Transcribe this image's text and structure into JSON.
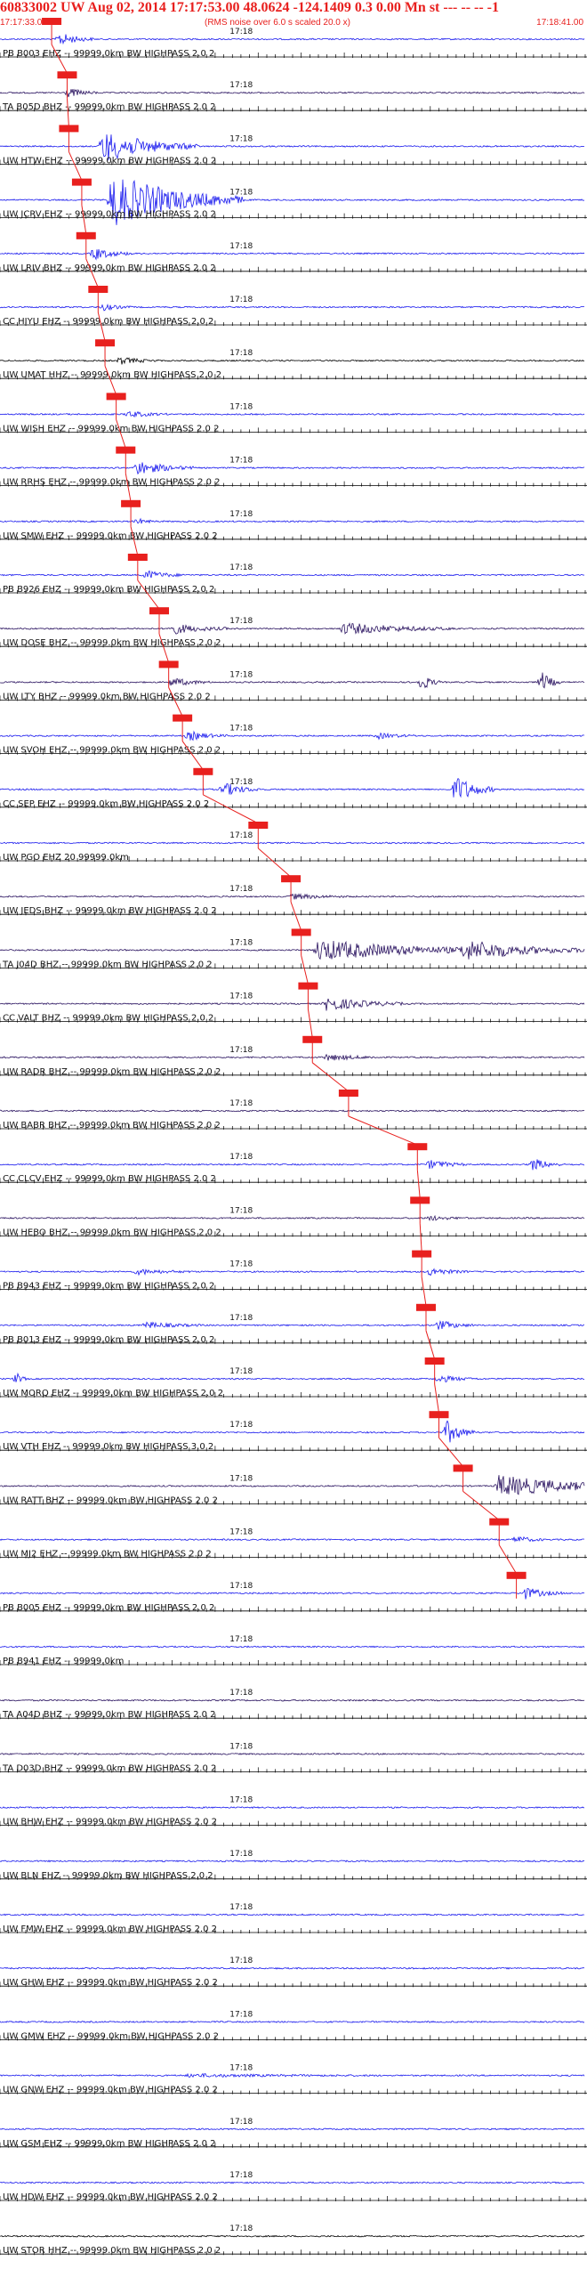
{
  "header": {
    "title": "60833002 UW Aug 02, 2014 17:17:53.00   48.0624 -124.1409  0.3 0.00 Mn st --- -- --  -1",
    "start_time": "17:17:33.00",
    "note": "(RMS noise over 6.0 s scaled 20.0 x)",
    "end_time": "17:18:41.00"
  },
  "colors": {
    "header_text": "#e8201e",
    "pick_line": "#e8201e",
    "trace_blue": "#1a1aee",
    "trace_dark": "#2a1360",
    "trace_black": "#000000"
  },
  "chart_data": {
    "type": "seismogram",
    "x_range_seconds": [
      0,
      68
    ],
    "time_tick_label": "17:18",
    "traces": [
      {
        "label": "PB B003 EHZ -- 99999.0km BW  HIGHPASS  2.0  2",
        "color": "blue",
        "pick_s": 6.0,
        "bursts": [
          [
            7,
            1.8,
            1.4
          ]
        ]
      },
      {
        "label": "TA B05D BHZ -- 99999.0km BW  HIGHPASS  2.0  2",
        "color": "dark",
        "pick_s": 7.8,
        "bursts": [
          [
            8,
            1.5,
            1.0
          ]
        ]
      },
      {
        "label": "UW HTW EHZ -- 99999.0km BW  HIGHPASS  2.0  2",
        "color": "blue",
        "pick_s": 8.0,
        "bursts": [
          [
            12,
            5.0,
            3.5
          ]
        ]
      },
      {
        "label": "UW JCRV EHZ -- 99999.0km BW  HIGHPASS  2.0  2",
        "color": "blue",
        "pick_s": 9.5,
        "bursts": [
          [
            13,
            7.0,
            6.0
          ]
        ]
      },
      {
        "label": "UW LRIV BHZ -- 99999.0km BW  HIGHPASS  2.0  2",
        "color": "blue",
        "pick_s": 10.0,
        "bursts": [
          [
            11,
            2.0,
            1.3
          ]
        ]
      },
      {
        "label": "CC HIYU EHZ -- 99999.0km BW  HIGHPASS  2.0  2",
        "color": "blue",
        "pick_s": 11.4,
        "bursts": [
          [
            12,
            1.5,
            0.7
          ]
        ]
      },
      {
        "label": "UW UMAT HHZ -- 99999.0km BW  HIGHPASS  2.0  2",
        "color": "black",
        "pick_s": 12.2,
        "bursts": [
          [
            14,
            2.0,
            0.8
          ]
        ]
      },
      {
        "label": "UW WISH EHZ -- 99999.0km BW  HIGHPASS  2.0  2",
        "color": "blue",
        "pick_s": 13.5,
        "bursts": [
          [
            15,
            2.0,
            0.7
          ]
        ]
      },
      {
        "label": "UW RRHS EHZ -- 99999.0km BW  HIGHPASS  2.0  2",
        "color": "blue",
        "pick_s": 14.6,
        "bursts": [
          [
            16,
            3.0,
            1.5
          ]
        ]
      },
      {
        "label": "UW SMW EHZ -- 99999.0km BW  HIGHPASS  2.0  2",
        "color": "blue",
        "pick_s": 15.2,
        "bursts": [
          [
            16,
            1.0,
            0.6
          ]
        ]
      },
      {
        "label": "PB B926 EHZ -- 99999.0km BW  HIGHPASS  2.0  2",
        "color": "blue",
        "pick_s": 16.0,
        "bursts": [
          [
            17,
            2.0,
            1.0
          ]
        ]
      },
      {
        "label": "UW DOSE BHZ -- 99999.0km BW  HIGHPASS  2.0  2",
        "color": "dark",
        "pick_s": 18.5,
        "bursts": [
          [
            20,
            3.0,
            1.2
          ],
          [
            40,
            6.0,
            1.3
          ]
        ]
      },
      {
        "label": "UW LTY BHZ -- 99999.0km BW  HIGHPASS  2.0  2",
        "color": "dark",
        "pick_s": 19.6,
        "bursts": [
          [
            20,
            2.0,
            1.0
          ],
          [
            49,
            1.0,
            1.8
          ],
          [
            63,
            1.0,
            2.2
          ]
        ]
      },
      {
        "label": "UW SVOH EHZ -- 99999.0km BW  HIGHPASS  2.0  2",
        "color": "blue",
        "pick_s": 21.2,
        "bursts": [
          [
            22,
            2.0,
            1.0
          ],
          [
            44,
            2.0,
            0.6
          ]
        ]
      },
      {
        "label": "CC SEP EHZ -- 99999.0km BW  HIGHPASS  2.0  2",
        "color": "blue",
        "pick_s": 23.6,
        "bursts": [
          [
            26,
            2.0,
            1.5
          ],
          [
            53,
            2.0,
            3.2
          ]
        ]
      },
      {
        "label": "UW PGO EHZ 20 99999.0km",
        "color": "blue",
        "pick_s": 30.0,
        "bursts": []
      },
      {
        "label": "UW JEDS BHZ -- 99999.0km BW  HIGHPASS  2.0  2",
        "color": "dark",
        "pick_s": 33.8,
        "bursts": [
          [
            34,
            3.0,
            0.6
          ]
        ]
      },
      {
        "label": "TA J04D BHZ -- 99999.0km BW  HIGHPASS  2.0  2",
        "color": "dark",
        "pick_s": 35.0,
        "bursts": [
          [
            37,
            10.0,
            2.4
          ],
          [
            54,
            8.0,
            1.8
          ]
        ]
      },
      {
        "label": "CC VALT BHZ -- 99999.0km BW  HIGHPASS  2.0  2",
        "color": "dark",
        "pick_s": 35.8,
        "bursts": [
          [
            38,
            4.0,
            1.6
          ]
        ]
      },
      {
        "label": "UW RADR BHZ -- 99999.0km BW  HIGHPASS  2.0  2",
        "color": "dark",
        "pick_s": 36.3,
        "bursts": [
          [
            38,
            3.0,
            0.7
          ]
        ]
      },
      {
        "label": "UW BABR BHZ -- 99999.0km BW  HIGHPASS  2.0  2",
        "color": "dark",
        "pick_s": 40.5,
        "bursts": []
      },
      {
        "label": "CC CLCV EHZ -- 99999.0km BW  HIGHPASS  2.0  2",
        "color": "blue",
        "pick_s": 48.5,
        "bursts": [
          [
            50,
            2.0,
            1.0
          ],
          [
            62,
            1.5,
            1.4
          ]
        ]
      },
      {
        "label": "UW HEBO BHZ -- 99999.0km BW  HIGHPASS  2.0  2",
        "color": "dark",
        "pick_s": 48.8,
        "bursts": [
          [
            50,
            2.0,
            0.5
          ]
        ]
      },
      {
        "label": "PB B943 EHZ -- 99999.0km BW  HIGHPASS  2.0  2",
        "color": "blue",
        "pick_s": 49.0,
        "bursts": [
          [
            16,
            3.0,
            0.6
          ],
          [
            50,
            2.0,
            0.9
          ]
        ]
      },
      {
        "label": "PB B013 EHZ -- 99999.0km BW  HIGHPASS  2.0  2",
        "color": "blue",
        "pick_s": 49.5,
        "bursts": [
          [
            17,
            3.0,
            0.7
          ],
          [
            51,
            2.0,
            1.0
          ]
        ]
      },
      {
        "label": "UW MORQ EHZ -- 99999.0km BW  HIGHPASS  2.0  2",
        "color": "blue",
        "pick_s": 50.5,
        "bursts": [
          [
            2,
            0.5,
            1.2
          ],
          [
            51,
            2.0,
            0.8
          ]
        ]
      },
      {
        "label": "UW VTH EHZ -- 99999.0km BW  HIGHPASS  3.0  2",
        "color": "blue",
        "pick_s": 51.0,
        "bursts": [
          [
            52,
            1.5,
            2.6
          ]
        ]
      },
      {
        "label": "UW RATT BHZ -- 99999.0km BW  HIGHPASS  2.0  2",
        "color": "dark",
        "pick_s": 53.8,
        "bursts": [
          [
            58,
            8.0,
            2.4
          ]
        ]
      },
      {
        "label": "UW MJ2 EHZ -- 99999.0km BW  HIGHPASS  2.0  2",
        "color": "blue",
        "pick_s": 58.0,
        "bursts": [
          [
            60,
            1.5,
            0.8
          ]
        ]
      },
      {
        "label": "PB B005 EHZ -- 99999.0km BW  HIGHPASS  2.0  2",
        "color": "blue",
        "pick_s": 60.0,
        "bursts": [
          [
            61,
            2.0,
            1.3
          ]
        ]
      },
      {
        "label": "PB B941 EHZ -- 99999.0km",
        "color": "blue",
        "pick_s": null,
        "bursts": []
      },
      {
        "label": "TA A04D BHZ -- 99999.0km BW  HIGHPASS  2.0  2",
        "color": "dark",
        "pick_s": null,
        "bursts": []
      },
      {
        "label": "TA D03D BHZ -- 99999.0km BW  HIGHPASS  2.0  2",
        "color": "dark",
        "pick_s": null,
        "bursts": []
      },
      {
        "label": "UW BHW EHZ -- 99999.0km BW  HIGHPASS  2.0  2",
        "color": "blue",
        "pick_s": null,
        "bursts": []
      },
      {
        "label": "UW BLN EHZ -- 99999.0km BW  HIGHPASS  2.0  2",
        "color": "blue",
        "pick_s": null,
        "bursts": []
      },
      {
        "label": "UW FMW EHZ -- 99999.0km BW  HIGHPASS  2.0  2",
        "color": "blue",
        "pick_s": null,
        "bursts": []
      },
      {
        "label": "UW GHW EHZ -- 99999.0km BW  HIGHPASS  2.0  2",
        "color": "blue",
        "pick_s": null,
        "bursts": []
      },
      {
        "label": "UW GMW EHZ -- 99999.0km BW  HIGHPASS  2.0  2",
        "color": "blue",
        "pick_s": null,
        "bursts": []
      },
      {
        "label": "UW GNW EHZ -- 99999.0km BW  HIGHPASS  2.0  2",
        "color": "blue",
        "pick_s": null,
        "bursts": [
          [
            22,
            10.0,
            0.3
          ]
        ]
      },
      {
        "label": "UW GSM EHZ -- 99999.0km BW  HIGHPASS  2.0  2",
        "color": "blue",
        "pick_s": null,
        "bursts": []
      },
      {
        "label": "UW HDW EHZ -- 99999.0km BW  HIGHPASS  2.0  2",
        "color": "blue",
        "pick_s": null,
        "bursts": []
      },
      {
        "label": "UW STOR HHZ -- 99999.0km BW  HIGHPASS  2.0  2",
        "color": "black",
        "pick_s": null,
        "bursts": []
      }
    ]
  }
}
